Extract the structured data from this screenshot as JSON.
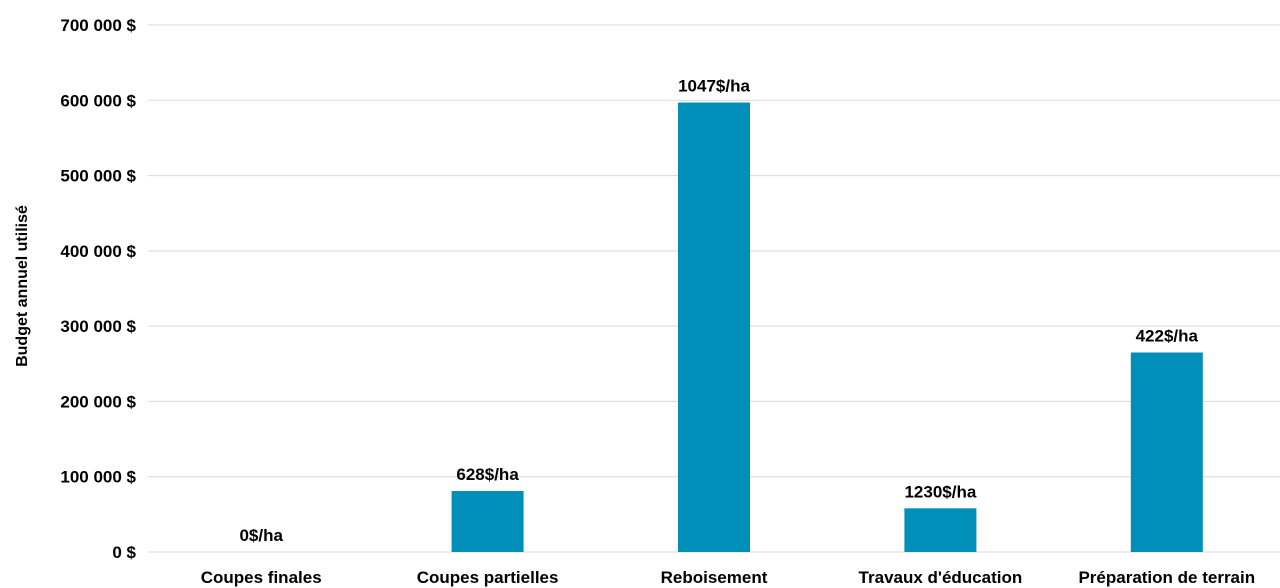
{
  "chart_data": {
    "type": "bar",
    "title": "",
    "xlabel": "",
    "ylabel": "Budget annuel utilisé",
    "categories": [
      "Coupes finales",
      "Coupes partielles",
      "Reboisement",
      "Travaux d'éducation",
      "Préparation de terrain"
    ],
    "values": [
      0,
      81000,
      597000,
      58000,
      265000
    ],
    "data_labels": [
      "0$/ha",
      "628$/ha",
      "1047$/ha",
      "1230$/ha",
      "422$/ha"
    ],
    "ylim": [
      0,
      700000
    ],
    "yticks": [
      0,
      100000,
      200000,
      300000,
      400000,
      500000,
      600000,
      700000
    ],
    "ytick_labels": [
      "0 $",
      "100 000 $",
      "200 000 $",
      "300 000 $",
      "400 000 $",
      "500 000 $",
      "600 000 $",
      "700 000 $"
    ],
    "grid": true,
    "bar_color": "#008fb8"
  }
}
